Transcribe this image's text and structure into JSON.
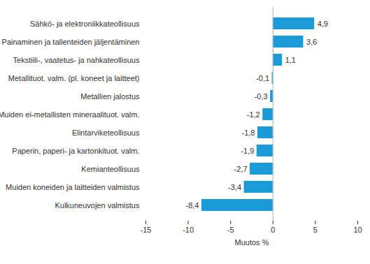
{
  "chart_data": {
    "type": "bar",
    "orientation": "horizontal",
    "categories": [
      "Sähkö- ja elektroniikkateollisuus",
      "Painaminen ja tallenteiden jäljentäminen",
      "Tekstiili-, vaatetus- ja nahkateollisuus",
      "Metallituot. valm. (pl. koneet ja laitteet)",
      "Metallien jalostus",
      "Muiden ei-metallisten mineraalituot. valm.",
      "Elintarviketeollisuus",
      "Paperin, paperi- ja kartonkituot. valm.",
      "Kemianteollisuus",
      "Muiden koneiden ja laitteiden valmistus",
      "Kulkuneuvojen valmistus"
    ],
    "values": [
      4.9,
      3.6,
      1.1,
      -0.1,
      -0.3,
      -1.2,
      -1.8,
      -1.9,
      -2.7,
      -3.4,
      -8.4
    ],
    "value_labels": [
      "4,9",
      "3,6",
      "1,1",
      "-0,1",
      "-0,3",
      "-1,2",
      "-1,8",
      "-1,9",
      "-2,7",
      "-3,4",
      "-8,4"
    ],
    "data_labels": true,
    "color": "#1a9ad6",
    "xlabel": "Muutos %",
    "xlim": [
      -15,
      10
    ],
    "xticks": [
      -15,
      -10,
      -5,
      0,
      5,
      10
    ],
    "grid": false
  }
}
